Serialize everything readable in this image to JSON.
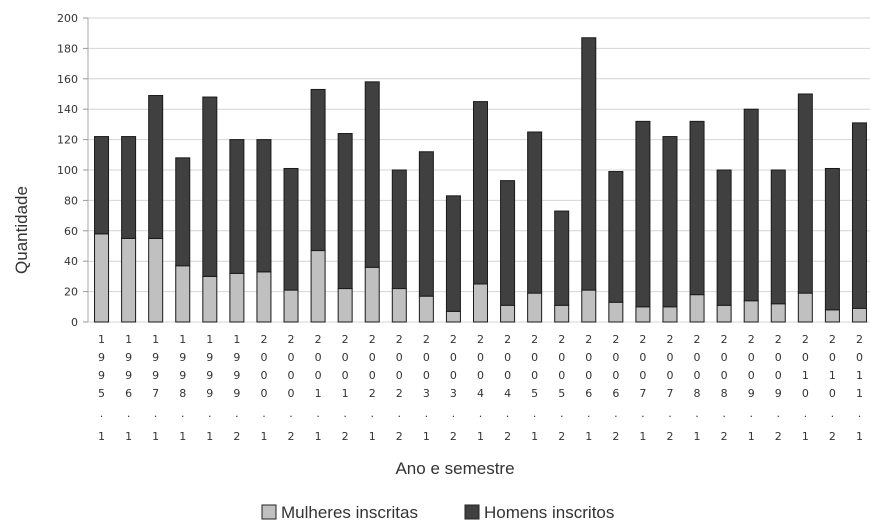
{
  "chart_data": {
    "type": "bar",
    "stacked": true,
    "title": "",
    "xlabel": "Ano e semestre",
    "ylabel": "Quantidade",
    "ylim": [
      0,
      200
    ],
    "yticks": [
      0,
      20,
      40,
      60,
      80,
      100,
      120,
      140,
      160,
      180,
      200
    ],
    "grid": true,
    "legend_position": "bottom",
    "categories": [
      "1995.1",
      "1996.1",
      "1997.1",
      "1998.1",
      "1999.1",
      "1999.2",
      "2000.1",
      "2000.2",
      "2001.1",
      "2001.2",
      "2002.1",
      "2002.2",
      "2003.1",
      "2003.2",
      "2004.1",
      "2004.2",
      "2005.1",
      "2005.2",
      "2006.1",
      "2006.2",
      "2007.1",
      "2007.2",
      "2008.1",
      "2008.2",
      "2009.1",
      "2009.2",
      "2010.1",
      "2010.2",
      "2011.1"
    ],
    "series": [
      {
        "name": "Mulheres inscritas",
        "color": "#c0c0c0",
        "values": [
          58,
          55,
          55,
          37,
          30,
          32,
          33,
          21,
          47,
          22,
          36,
          22,
          17,
          7,
          25,
          11,
          19,
          11,
          21,
          13,
          10,
          10,
          18,
          11,
          14,
          12,
          19,
          8,
          9
        ]
      },
      {
        "name": "Homens inscritos",
        "color": "#404040",
        "values": [
          64,
          67,
          94,
          71,
          118,
          88,
          87,
          80,
          106,
          102,
          122,
          78,
          95,
          76,
          120,
          82,
          106,
          62,
          166,
          86,
          122,
          112,
          114,
          89,
          126,
          88,
          131,
          93,
          122
        ]
      }
    ]
  }
}
